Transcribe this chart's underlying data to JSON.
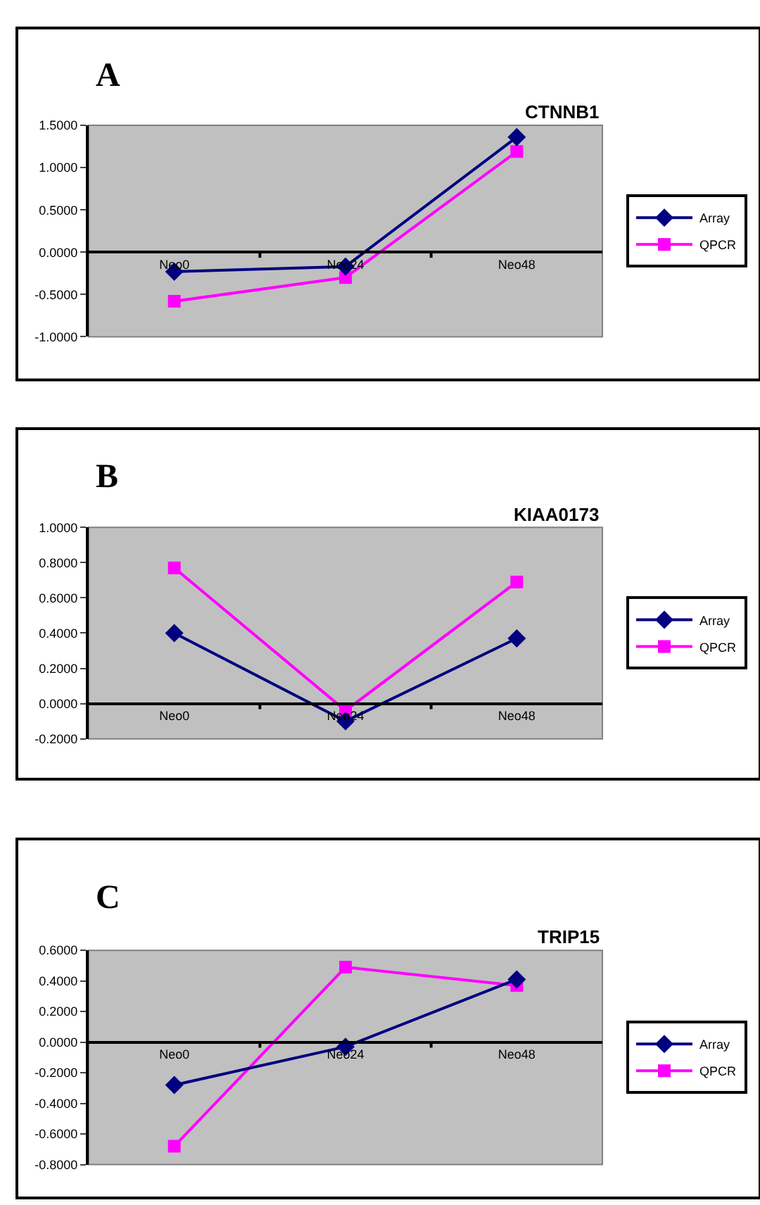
{
  "chart_data": [
    {
      "type": "line",
      "title": "CTNNB1",
      "annotations": [
        "A"
      ],
      "categories": [
        "Neo0",
        "Neo24",
        "Neo48"
      ],
      "series": [
        {
          "name": "Array",
          "color": "#000080",
          "marker": "diamond",
          "values": [
            -0.23,
            -0.17,
            1.36
          ]
        },
        {
          "name": "QPCR",
          "color": "#ff00ff",
          "marker": "square",
          "values": [
            -0.58,
            -0.3,
            1.19
          ]
        }
      ],
      "ylim": [
        -1.0,
        1.5
      ],
      "yticks": [
        {
          "value": -1.0,
          "label": "-1.0000"
        },
        {
          "value": -0.5,
          "label": "-0.5000"
        },
        {
          "value": 0,
          "label": "0.0000"
        },
        {
          "value": 0.5,
          "label": "0.5000"
        },
        {
          "value": 1.0,
          "label": "1.0000"
        },
        {
          "value": 1.5,
          "label": "1.5000"
        }
      ],
      "legend": "right"
    },
    {
      "type": "line",
      "title": "KIAA0173",
      "annotations": [
        "B"
      ],
      "categories": [
        "Neo0",
        "Neo24",
        "Neo48"
      ],
      "series": [
        {
          "name": "Array",
          "color": "#000080",
          "marker": "diamond",
          "values": [
            0.4,
            -0.1,
            0.37
          ]
        },
        {
          "name": "QPCR",
          "color": "#ff00ff",
          "marker": "square",
          "values": [
            0.77,
            -0.04,
            0.69
          ]
        }
      ],
      "ylim": [
        -0.2,
        1.0
      ],
      "yticks": [
        {
          "value": -0.2,
          "label": "-0.2000"
        },
        {
          "value": 0,
          "label": "0.0000"
        },
        {
          "value": 0.2,
          "label": "0.2000"
        },
        {
          "value": 0.4,
          "label": "0.4000"
        },
        {
          "value": 0.6,
          "label": "0.6000"
        },
        {
          "value": 0.8,
          "label": "0.8000"
        },
        {
          "value": 1.0,
          "label": "1.0000"
        }
      ],
      "legend": "right"
    },
    {
      "type": "line",
      "title": "TRIP15",
      "annotations": [
        "C"
      ],
      "categories": [
        "Neo0",
        "Neo24",
        "Neo48"
      ],
      "series": [
        {
          "name": "Array",
          "color": "#000080",
          "marker": "diamond",
          "values": [
            -0.28,
            -0.03,
            0.41
          ]
        },
        {
          "name": "QPCR",
          "color": "#ff00ff",
          "marker": "square",
          "values": [
            -0.68,
            0.49,
            0.37
          ]
        }
      ],
      "ylim": [
        -0.8,
        0.6
      ],
      "yticks": [
        {
          "value": -0.8,
          "label": "-0.8000"
        },
        {
          "value": -0.6,
          "label": "-0.6000"
        },
        {
          "value": -0.4,
          "label": "-0.4000"
        },
        {
          "value": -0.2,
          "label": "-0.2000"
        },
        {
          "value": 0,
          "label": "0.0000"
        },
        {
          "value": 0.2,
          "label": "0.2000"
        },
        {
          "value": 0.4,
          "label": "0.4000"
        },
        {
          "value": 0.6,
          "label": "0.6000"
        }
      ],
      "legend": "right"
    }
  ]
}
